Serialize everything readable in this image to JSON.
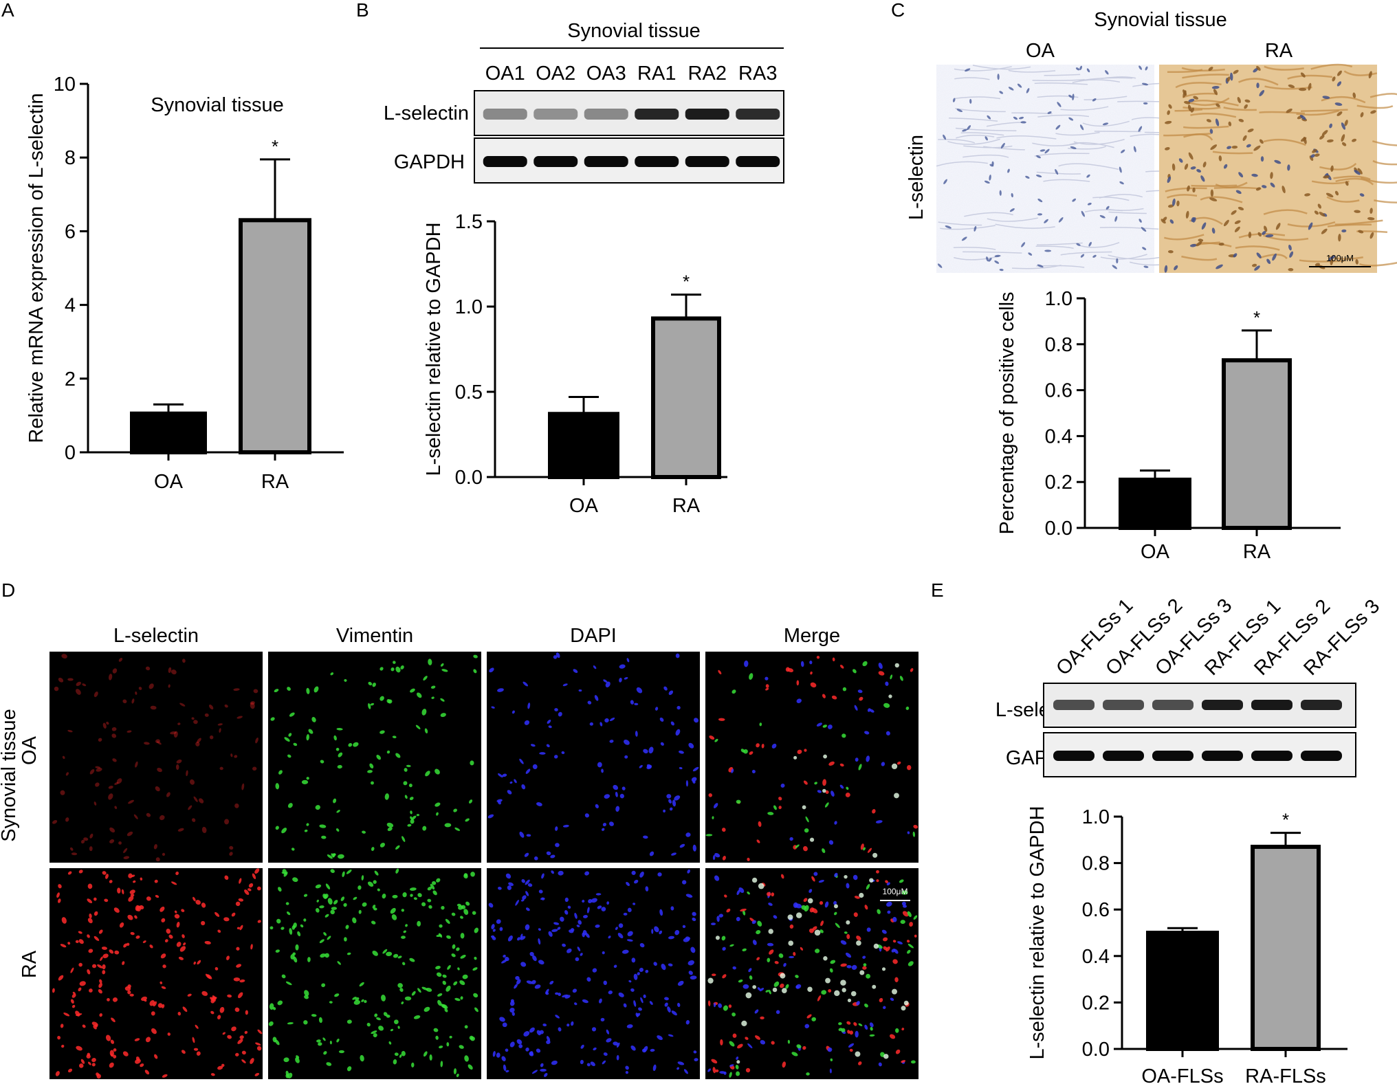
{
  "panels": {
    "A": {
      "letter": "A"
    },
    "B": {
      "letter": "B",
      "header": "Synovial tissue",
      "lanes": [
        "OA1",
        "OA2",
        "OA3",
        "RA1",
        "RA2",
        "RA3"
      ],
      "rows": [
        "L-selectin",
        "GAPDH"
      ]
    },
    "C": {
      "letter": "C",
      "header": "Synovial tissue",
      "col_labels": [
        "OA",
        "RA"
      ],
      "row_label": "L-selectin",
      "scale_bar": "100μM"
    },
    "D": {
      "letter": "D",
      "col_labels": [
        "L-selectin",
        "Vimentin",
        "DAPI",
        "Merge"
      ],
      "row_labels": [
        "OA",
        "RA"
      ],
      "group_label": "Synovial tissue",
      "scale_bar": "100μM",
      "colors": {
        "L-selectin": "#ff2020",
        "Vimentin": "#2fd22f",
        "DAPI": "#2a2aff"
      }
    },
    "E": {
      "letter": "E",
      "lanes": [
        "OA-FLSs 1",
        "OA-FLSs 2",
        "OA-FLSs 3",
        "RA-FLSs 1",
        "RA-FLSs 2",
        "RA-FLSs 3"
      ],
      "rows": [
        "L-selectin",
        "GAPDH"
      ]
    }
  },
  "chart_data": [
    {
      "panel": "A",
      "type": "bar",
      "title": "Synovial tissue",
      "categories": [
        "OA",
        "RA"
      ],
      "values": [
        1.05,
        6.3
      ],
      "errors": [
        0.25,
        1.65
      ],
      "significance": [
        "",
        "*"
      ],
      "ylabel": "Relative mRNA expression of L-selectin",
      "xlabel": "",
      "ylim": [
        0,
        10
      ],
      "yticks": [
        "0",
        "2",
        "4",
        "6",
        "8",
        "10"
      ],
      "bar_colors": [
        "#000000",
        "#a6a6a6"
      ]
    },
    {
      "panel": "B",
      "type": "bar",
      "title": "",
      "categories": [
        "OA",
        "RA"
      ],
      "values": [
        0.37,
        0.93
      ],
      "errors": [
        0.1,
        0.14
      ],
      "significance": [
        "",
        "*"
      ],
      "ylabel": "L-selectin relative to GAPDH",
      "xlabel": "",
      "ylim": [
        0,
        1.5
      ],
      "yticks": [
        "0.0",
        "0.5",
        "1.0",
        "1.5"
      ],
      "bar_colors": [
        "#000000",
        "#a6a6a6"
      ]
    },
    {
      "panel": "C",
      "type": "bar",
      "title": "",
      "categories": [
        "OA",
        "RA"
      ],
      "values": [
        0.21,
        0.73
      ],
      "errors": [
        0.04,
        0.13
      ],
      "significance": [
        "",
        "*"
      ],
      "ylabel": "Percentage of positive cells",
      "xlabel": "",
      "ylim": [
        0,
        1.0
      ],
      "yticks": [
        "0.0",
        "0.2",
        "0.4",
        "0.6",
        "0.8",
        "1.0"
      ],
      "bar_colors": [
        "#000000",
        "#a6a6a6"
      ]
    },
    {
      "panel": "E",
      "type": "bar",
      "title": "",
      "categories": [
        "OA-FLSs",
        "RA-FLSs"
      ],
      "values": [
        0.5,
        0.87
      ],
      "errors": [
        0.02,
        0.06
      ],
      "significance": [
        "",
        "*"
      ],
      "ylabel": "L-selectin relative to GAPDH",
      "xlabel": "",
      "ylim": [
        0,
        1.0
      ],
      "yticks": [
        "0.0",
        "0.2",
        "0.4",
        "0.6",
        "0.8",
        "1.0"
      ],
      "bar_colors": [
        "#000000",
        "#a6a6a6"
      ]
    }
  ]
}
